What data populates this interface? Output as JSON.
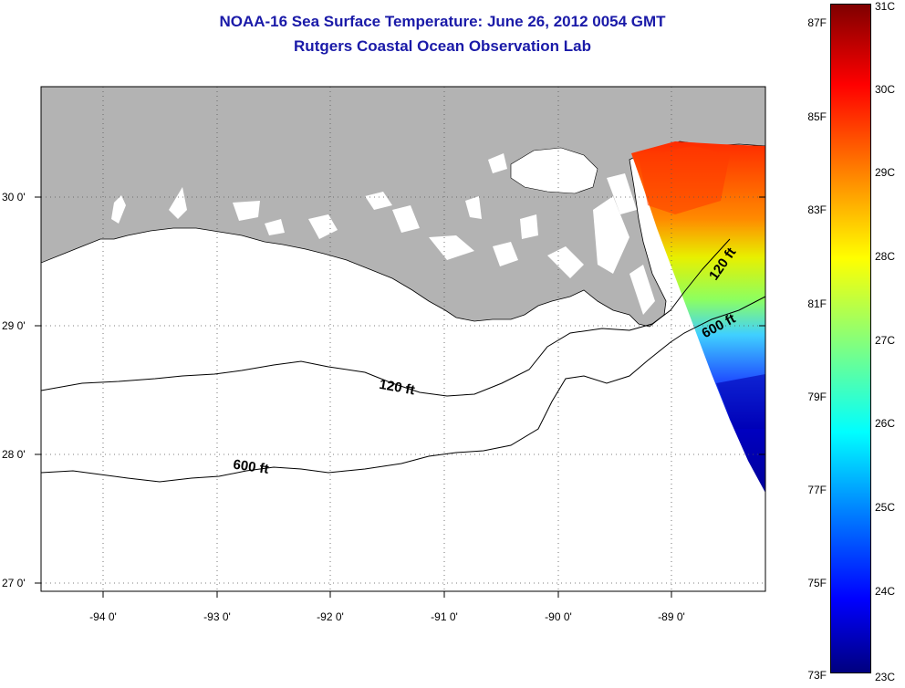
{
  "header": {
    "title": "NOAA-16 Sea Surface Temperature:  June 26, 2012 0054 GMT",
    "subtitle": "Rutgers Coastal Ocean Observation Lab"
  },
  "map": {
    "lon_range": [
      -94.55,
      -88.25
    ],
    "lat_range": [
      26.95,
      29.85
    ],
    "lon_ticks": [
      "-94 0'",
      "-93 0'",
      "-92 0'",
      "-91 0'",
      "-90 0'",
      "-89 0'"
    ],
    "lat_ticks": [
      "27 0'",
      "28 0'",
      "29 0'",
      "30 0'"
    ],
    "contours": [
      {
        "label": "120 ft"
      },
      {
        "label": "120 ft"
      },
      {
        "label": "600 ft"
      },
      {
        "label": "600 ft"
      }
    ],
    "land_color": "#b3b3b3",
    "grid": true
  },
  "colorbar": {
    "fahrenheit_ticks": [
      "87F",
      "85F",
      "83F",
      "81F",
      "79F",
      "77F",
      "75F",
      "73F"
    ],
    "celsius_ticks": [
      "31C",
      "30C",
      "29C",
      "28C",
      "27C",
      "26C",
      "25C",
      "24C",
      "23C"
    ],
    "colormap": "jet",
    "range_c": [
      23,
      31
    ]
  }
}
